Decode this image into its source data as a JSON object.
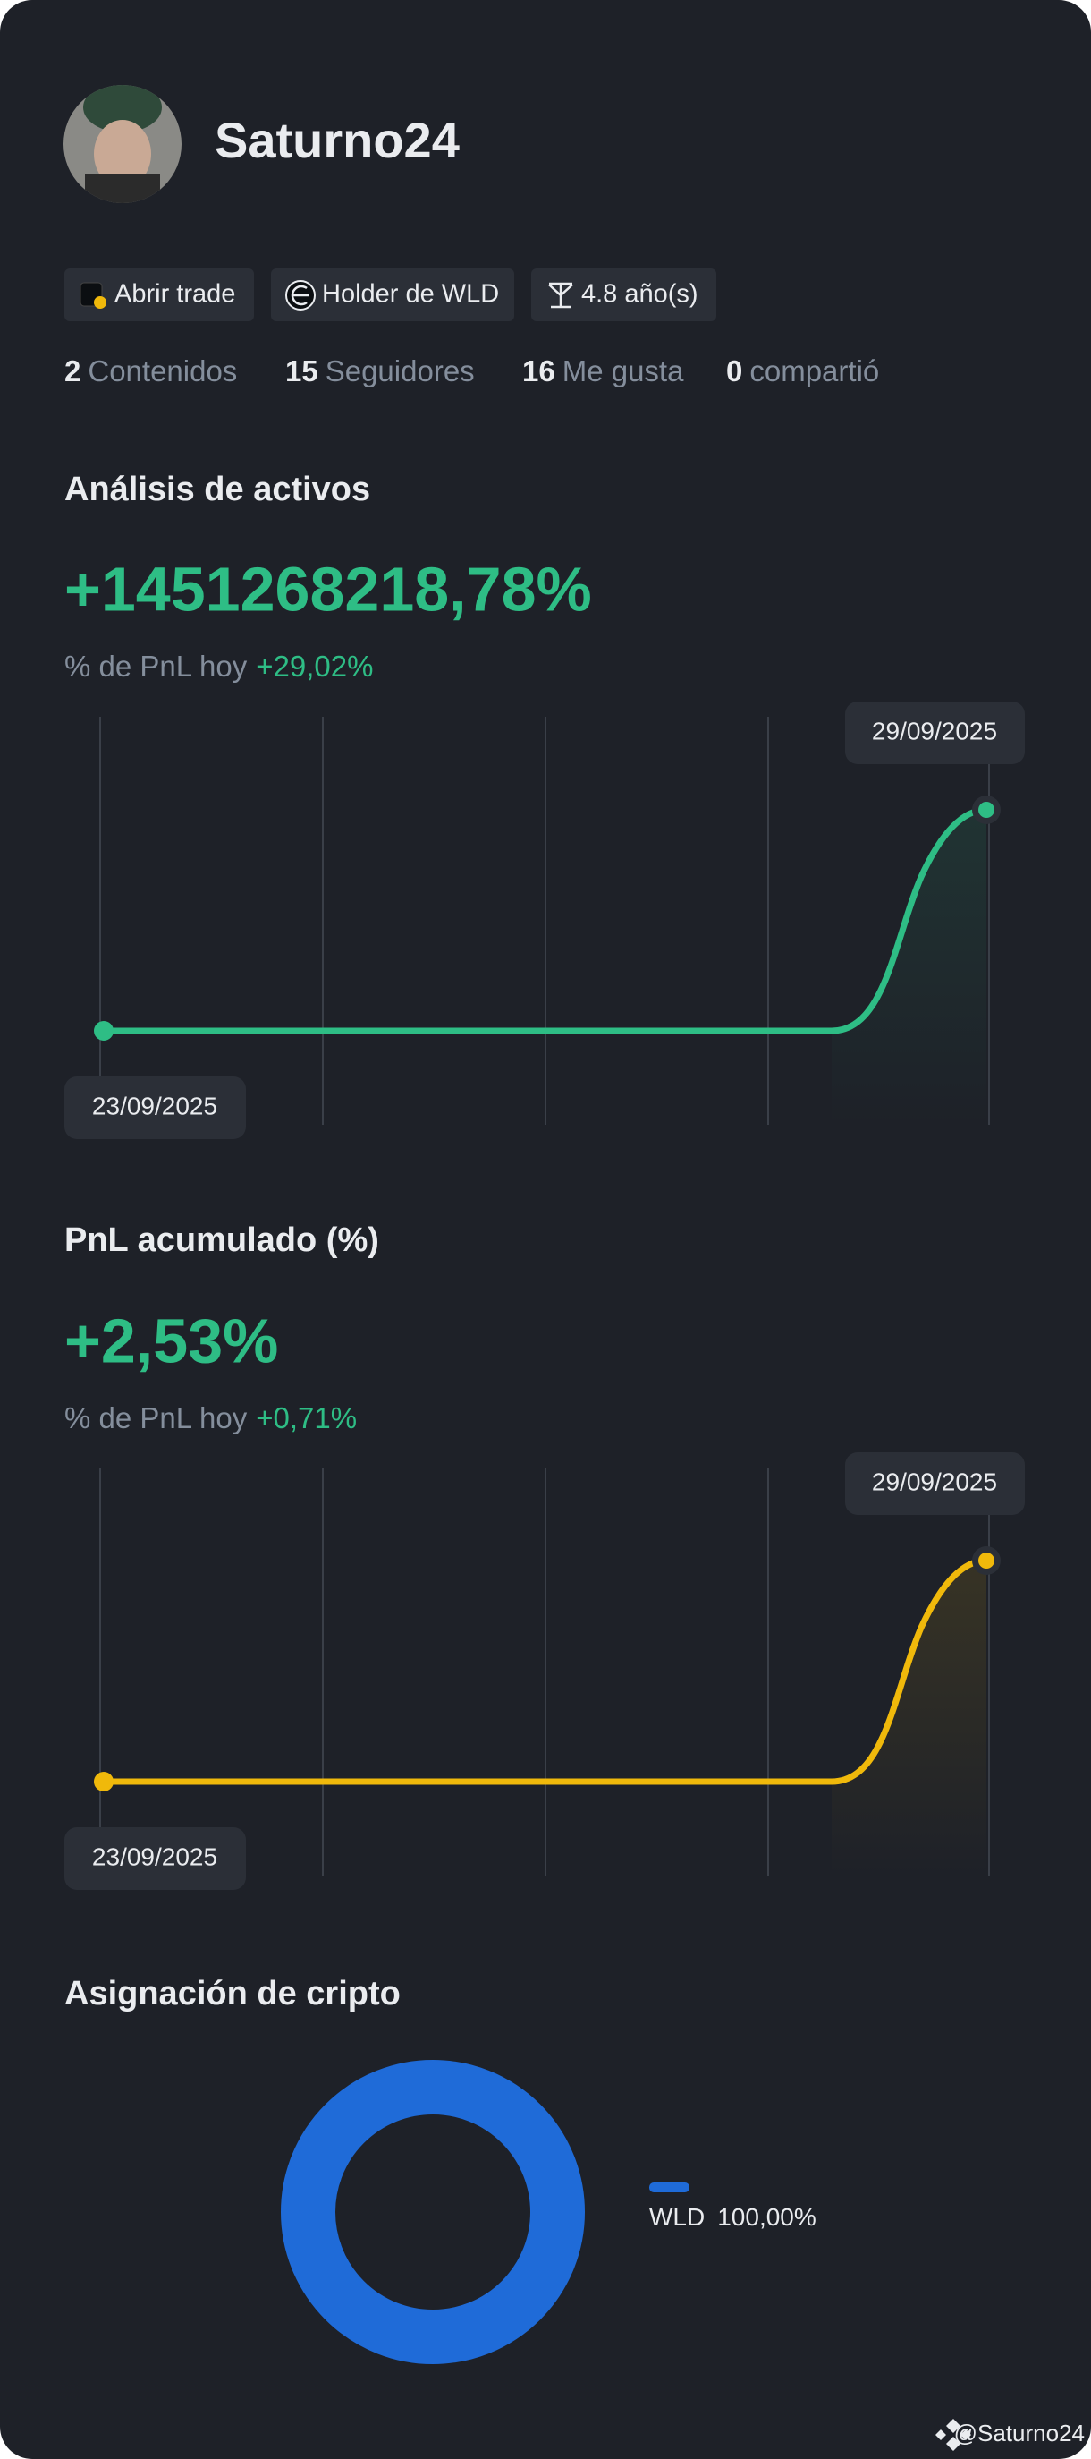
{
  "profile": {
    "name": "Saturno24",
    "badges": [
      "Abrir trade",
      "Holder de WLD",
      "4.8 año(s)"
    ],
    "stats": [
      {
        "count": 2,
        "label": "Contenidos"
      },
      {
        "count": 15,
        "label": "Seguidores"
      },
      {
        "count": 16,
        "label": "Me gusta"
      },
      {
        "count": 0,
        "label": "compartió"
      }
    ]
  },
  "asset_analysis": {
    "title": "Análisis de activos",
    "value": "+1451268218,78%",
    "today_label": "% de PnL hoy",
    "today_value": "+29,02%",
    "start_date": "23/09/2025",
    "end_date": "29/09/2025"
  },
  "cumulative_pnl": {
    "title": "PnL acumulado (%)",
    "value": "+2,53%",
    "today_label": "% de PnL hoy",
    "today_value": "+0,71%",
    "start_date": "23/09/2025",
    "end_date": "29/09/2025"
  },
  "allocation": {
    "type": "donut",
    "title": "Asignación de cripto",
    "categories": [
      "WLD"
    ],
    "values": [
      100
    ],
    "value_labels": [
      "100,00%"
    ],
    "colors": [
      "#1f6bd8"
    ]
  },
  "watermark": "@Saturno24"
}
